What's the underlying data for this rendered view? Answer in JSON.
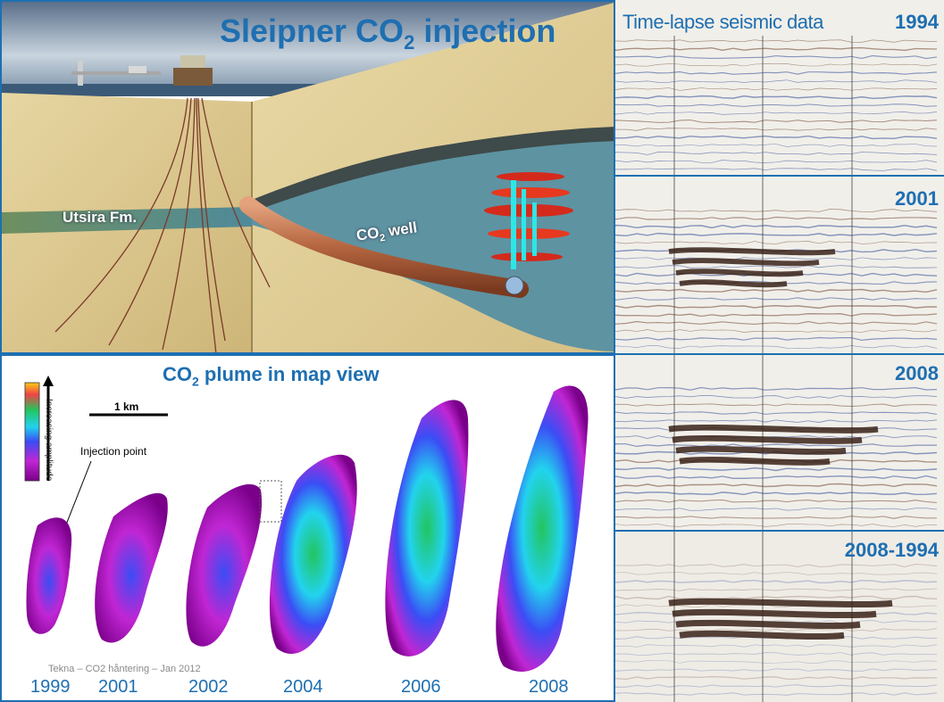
{
  "geology": {
    "title_main": "Sleipner CO",
    "title_sub": "2",
    "title_end": " injection",
    "formation_label": "Utsira Fm.",
    "well_label_main": "CO",
    "well_label_sub": "2",
    "well_label_end": " well"
  },
  "map": {
    "title_main": "CO",
    "title_sub": "2",
    "title_end": " plume in map view",
    "scale_label": "1 km",
    "injection_label": "Injection point",
    "amplitude_label": "Increasing amplitude",
    "credit": "Tekna – CO2 håntering – Jan 2012",
    "years": [
      "1999",
      "2001",
      "2002",
      "2004",
      "2006",
      "2008"
    ]
  },
  "seismic": {
    "title": "Time-lapse seismic data",
    "years": [
      "1994",
      "2001",
      "2008",
      "2008-1994"
    ]
  },
  "colors": {
    "accent": "#1e6fb1",
    "sea": "#3f6e8e",
    "rock": "#d9c48c",
    "plume_edge": "#c026d3",
    "plume_core": "#22c55e"
  }
}
